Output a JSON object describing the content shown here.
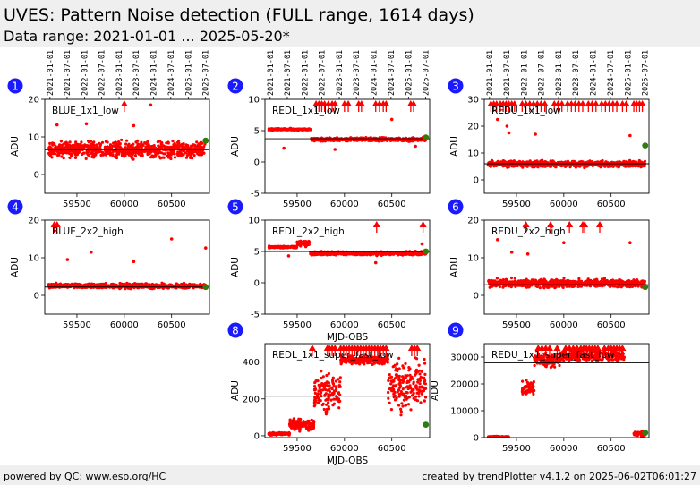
{
  "header": {
    "title": "UVES: Pattern Noise detection (FULL range, 1614 days)",
    "subtitle": "Data range: 2021-01-01 ... 2025-05-20*"
  },
  "footer": {
    "left": "powered by QC: www.eso.org/HC",
    "right": "created by trendPlotter v4.1.2 on 2025-06-02T06:01:27"
  },
  "colors": {
    "points": "#ff0000",
    "latest_point": "#2e7d0f",
    "badge": "#1a1aff",
    "reference_line": "#000000"
  },
  "date_ticks": [
    "2021-01-01",
    "2021-07-01",
    "2022-01-01",
    "2022-07-01",
    "2023-01-01",
    "2023-07-01",
    "2024-01-01",
    "2024-07-01",
    "2025-01-01",
    "2025-07-01"
  ],
  "date_tick_mjd": [
    59215,
    59396,
    59580,
    59761,
    59945,
    60126,
    60310,
    60492,
    60676,
    60857
  ],
  "chart_data": [
    {
      "index": "1",
      "type": "scatter",
      "label": "BLUE_1x1_low",
      "ylabel": "ADU",
      "xlabel": "",
      "xlim": [
        59160,
        60900
      ],
      "ylim": [
        -5,
        20
      ],
      "yticks": [
        0,
        10,
        20
      ],
      "xticks": [
        59500,
        60000,
        60500
      ],
      "date_axis": true,
      "reference": 6.6,
      "segments": [
        {
          "x": [
            59200,
            60860
          ],
          "base": 6.6,
          "spread": 3.0
        }
      ],
      "outliers": [
        {
          "x": 59600,
          "y": 13.5
        },
        {
          "x": 60280,
          "y": 18.5
        },
        {
          "x": 60100,
          "y": 13.0
        },
        {
          "x": 59290,
          "y": 13.2
        }
      ],
      "arrows": [
        60000
      ],
      "latest": {
        "x": 60860,
        "y": 9.0
      }
    },
    {
      "index": "2",
      "type": "scatter",
      "label": "REDL_1x1_low",
      "ylabel": "ADU",
      "xlabel": "",
      "xlim": [
        59160,
        60900
      ],
      "ylim": [
        -5,
        10
      ],
      "yticks": [
        -5,
        0,
        5,
        10
      ],
      "xticks": [
        59500,
        60000,
        60500
      ],
      "date_axis": true,
      "reference": 3.7,
      "segments": [
        {
          "x": [
            59200,
            59640
          ],
          "base": 5.2,
          "spread": 0.2
        },
        {
          "x": [
            59650,
            60860
          ],
          "base": 3.6,
          "spread": 0.4
        }
      ],
      "outliers": [
        {
          "x": 59360,
          "y": 2.2
        },
        {
          "x": 59900,
          "y": 2.0
        },
        {
          "x": 60500,
          "y": 6.8
        },
        {
          "x": 60750,
          "y": 2.5
        }
      ],
      "arrows": [
        59700,
        59730,
        59760,
        59790,
        59830,
        59870,
        59900,
        60000,
        60040,
        60150,
        60180,
        60330,
        60370,
        60410,
        60440,
        60700,
        60730
      ],
      "latest": {
        "x": 60860,
        "y": 3.9
      }
    },
    {
      "index": "3",
      "type": "scatter",
      "label": "REDU_1x1_low",
      "ylabel": "ADU",
      "xlabel": "",
      "xlim": [
        59160,
        60900
      ],
      "ylim": [
        -5,
        30
      ],
      "yticks": [
        0,
        10,
        20,
        30
      ],
      "xticks": [
        59500,
        60000,
        60500
      ],
      "date_axis": true,
      "reference": 6.0,
      "segments": [
        {
          "x": [
            59200,
            60860
          ],
          "base": 5.9,
          "spread": 1.6
        }
      ],
      "outliers": [
        {
          "x": 59300,
          "y": 22.5
        },
        {
          "x": 59400,
          "y": 20.0
        },
        {
          "x": 59700,
          "y": 17.0
        },
        {
          "x": 60700,
          "y": 16.5
        },
        {
          "x": 59420,
          "y": 17.5
        }
      ],
      "arrows": [
        59230,
        59260,
        59290,
        59330,
        59360,
        59390,
        59420,
        59450,
        59480,
        59560,
        59600,
        59640,
        59680,
        59720,
        59760,
        59800,
        59900,
        59940,
        59980,
        60040,
        60080,
        60120,
        60160,
        60200,
        60260,
        60300,
        60340,
        60400,
        60440,
        60480,
        60520,
        60560,
        60620,
        60660,
        60740,
        60770,
        60800,
        60830
      ],
      "latest": {
        "x": 60860,
        "y": 12.8
      }
    },
    {
      "index": "4",
      "type": "scatter",
      "label": "BLUE_2x2_high",
      "ylabel": "ADU",
      "xlabel": "",
      "xlim": [
        59160,
        60900
      ],
      "ylim": [
        -5,
        20
      ],
      "yticks": [
        0,
        10,
        20
      ],
      "xticks": [
        59500,
        60000,
        60500
      ],
      "date_axis": false,
      "reference": 2.2,
      "segments": [
        {
          "x": [
            59200,
            60860
          ],
          "base": 2.5,
          "spread": 0.9
        }
      ],
      "outliers": [
        {
          "x": 60500,
          "y": 15.0
        },
        {
          "x": 59650,
          "y": 11.5
        },
        {
          "x": 60860,
          "y": 12.6
        },
        {
          "x": 60100,
          "y": 9.0
        },
        {
          "x": 59400,
          "y": 9.5
        }
      ],
      "arrows": [
        59260,
        59290
      ],
      "latest": {
        "x": 60860,
        "y": 2.2
      }
    },
    {
      "index": "5",
      "type": "scatter",
      "label": "REDL_2x2_high",
      "ylabel": "ADU",
      "xlabel": "MJD-OBS",
      "xlim": [
        59160,
        60900
      ],
      "ylim": [
        -5,
        10
      ],
      "yticks": [
        -5,
        0,
        5,
        10
      ],
      "xticks": [
        59500,
        60000,
        60500
      ],
      "date_axis": false,
      "reference": 5.0,
      "segments": [
        {
          "x": [
            59200,
            59500
          ],
          "base": 5.7,
          "spread": 0.2
        },
        {
          "x": [
            59500,
            59630
          ],
          "base": 6.3,
          "spread": 0.6
        },
        {
          "x": [
            59640,
            60860
          ],
          "base": 4.7,
          "spread": 0.4
        }
      ],
      "outliers": [
        {
          "x": 59410,
          "y": 4.3
        },
        {
          "x": 60330,
          "y": 3.2
        },
        {
          "x": 60820,
          "y": 6.2
        }
      ],
      "arrows": [
        60340,
        60830
      ],
      "latest": {
        "x": 60860,
        "y": 5.0
      }
    },
    {
      "index": "6",
      "type": "scatter",
      "label": "REDU_2x2_high",
      "ylabel": "ADU",
      "xlabel": "",
      "xlim": [
        59160,
        60900
      ],
      "ylim": [
        -5,
        20
      ],
      "yticks": [
        0,
        10,
        20
      ],
      "xticks": [
        59500,
        60000,
        60500
      ],
      "date_axis": false,
      "reference": 2.8,
      "segments": [
        {
          "x": [
            59200,
            60860
          ],
          "base": 3.2,
          "spread": 1.5
        }
      ],
      "outliers": [
        {
          "x": 59300,
          "y": 14.8
        },
        {
          "x": 59450,
          "y": 11.5
        },
        {
          "x": 60000,
          "y": 14.0
        },
        {
          "x": 60700,
          "y": 14.0
        },
        {
          "x": 59620,
          "y": 11.0
        }
      ],
      "arrows": [
        59600,
        59860,
        60060,
        60200,
        60220,
        60380
      ],
      "latest": {
        "x": 60860,
        "y": 2.2
      }
    },
    {
      "index": "8",
      "type": "scatter",
      "label": "REDL_1x1_super_fast_low",
      "ylabel": "ADU",
      "xlabel": "MJD-OBS",
      "xlim": [
        59160,
        60900
      ],
      "ylim": [
        -10,
        500
      ],
      "yticks": [
        0,
        200,
        400
      ],
      "xticks": [
        59500,
        60000,
        60500
      ],
      "date_axis": false,
      "reference": 215,
      "segments": [
        {
          "x": [
            59200,
            59420
          ],
          "base": 10,
          "spread": 10
        },
        {
          "x": [
            59420,
            59680
          ],
          "base": 60,
          "spread": 40
        },
        {
          "x": [
            59680,
            59960
          ],
          "base": 230,
          "spread": 150
        },
        {
          "x": [
            59960,
            60460
          ],
          "base": 410,
          "spread": 30
        },
        {
          "x": [
            60460,
            60860
          ],
          "base": 280,
          "spread": 180
        }
      ],
      "outliers": [],
      "arrows": [
        59660,
        59820,
        59840,
        59870,
        59900,
        59960,
        59990,
        60020,
        60050,
        60080,
        60110,
        60140,
        60170,
        60200,
        60230,
        60260,
        60290,
        60320,
        60350,
        60380,
        60410,
        60440,
        60710,
        60740,
        60770
      ],
      "latest": {
        "x": 60860,
        "y": 60
      }
    },
    {
      "index": "9",
      "type": "scatter",
      "label": "REDU_1x1_super_fast_low",
      "ylabel": "ADU",
      "xlabel": "",
      "xlim": [
        59160,
        60900
      ],
      "ylim": [
        0,
        35000
      ],
      "yticks": [
        0,
        10000,
        20000,
        30000
      ],
      "xticks": [
        59500,
        60000,
        60500
      ],
      "date_axis": false,
      "reference": 27800,
      "segments": [
        {
          "x": [
            59200,
            59420
          ],
          "base": 300,
          "spread": 300
        },
        {
          "x": [
            59560,
            59690
          ],
          "base": 18500,
          "spread": 4500
        },
        {
          "x": [
            59690,
            59960
          ],
          "base": 29000,
          "spread": 3500
        },
        {
          "x": [
            59960,
            60380
          ],
          "base": 30500,
          "spread": 3000
        },
        {
          "x": [
            60400,
            60640
          ],
          "base": 30500,
          "spread": 3000
        },
        {
          "x": [
            60740,
            60860
          ],
          "base": 1500,
          "spread": 1200
        }
      ],
      "outliers": [],
      "arrows": [
        59730,
        59770,
        59810,
        59850,
        59930,
        60020,
        60060,
        60100,
        60140,
        60180,
        60210,
        60240,
        60270,
        60300,
        60330,
        60360,
        60430,
        60470,
        60500,
        60530,
        60560,
        60590,
        60620
      ],
      "latest": {
        "x": 60860,
        "y": 1800
      }
    }
  ]
}
